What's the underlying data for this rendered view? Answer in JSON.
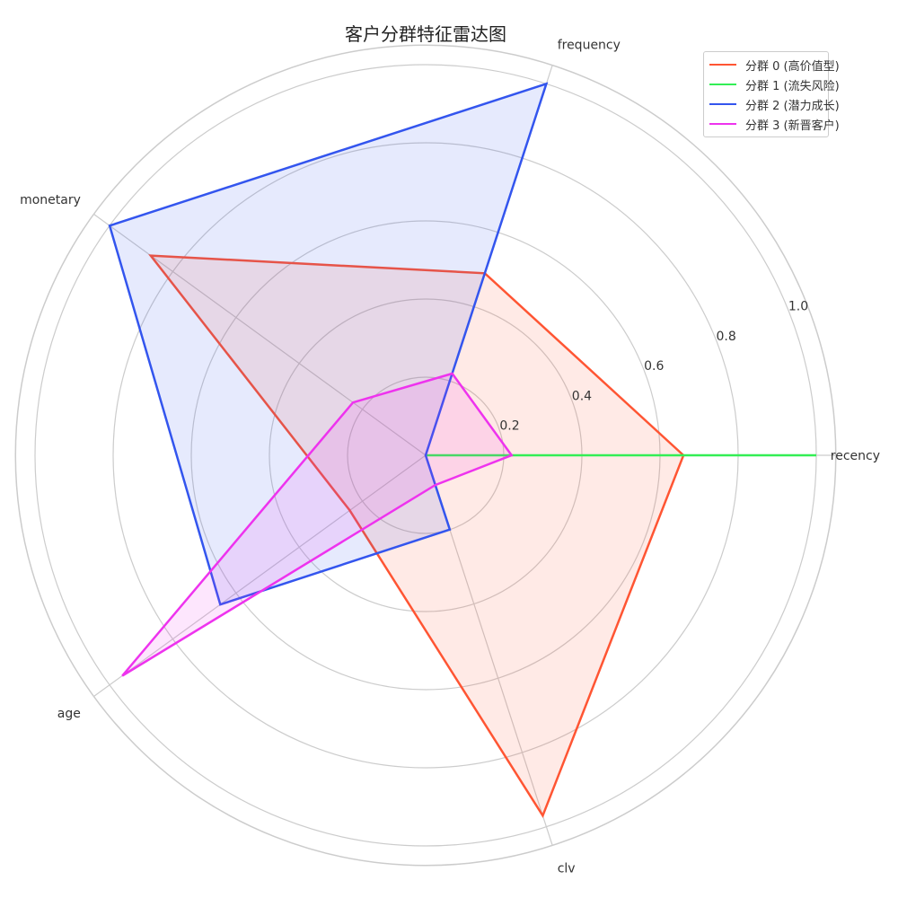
{
  "chart_data": {
    "type": "radar",
    "title": "客户分群特征雷达图",
    "axes": [
      "recency",
      "frequency",
      "monetary",
      "age",
      "clv"
    ],
    "radial_ticks": [
      "0.2",
      "0.4",
      "0.6",
      "0.8",
      "1.0"
    ],
    "rmax": 1.05,
    "grid": true,
    "legend_position": "top-right",
    "series": [
      {
        "name": "分群 0 (高价值型)",
        "color": "#ff5533",
        "values": [
          0.66,
          0.49,
          0.87,
          0.24,
          0.97
        ]
      },
      {
        "name": "分群 1 (流失风险)",
        "color": "#33ee55",
        "values": [
          1.0,
          0.0,
          0.0,
          0.0,
          0.0
        ]
      },
      {
        "name": "分群 2 (潜力成长)",
        "color": "#3355ee",
        "values": [
          0.0,
          1.0,
          1.0,
          0.65,
          0.2
        ]
      },
      {
        "name": "分群 3 (新晋客户)",
        "color": "#ee33ee",
        "values": [
          0.22,
          0.22,
          0.23,
          0.96,
          0.08
        ]
      }
    ]
  }
}
